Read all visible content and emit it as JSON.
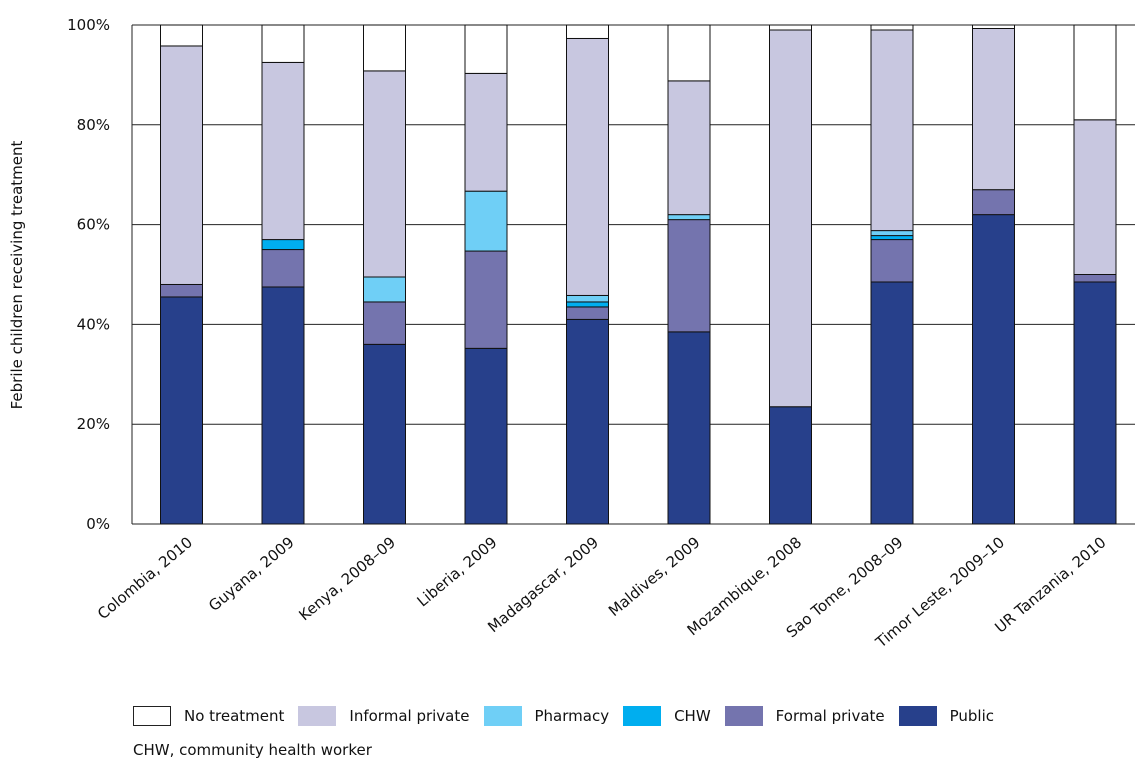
{
  "chart_data": {
    "type": "bar",
    "stacked": true,
    "title": "",
    "xlabel": "",
    "ylabel": "Febrile children receiving treatment",
    "ylim": [
      0,
      100
    ],
    "yticks": [
      "0%",
      "20%",
      "40%",
      "60%",
      "80%",
      "100%"
    ],
    "grid": true,
    "legend_position": "bottom",
    "categories": [
      "Colombia, 2010",
      "Guyana, 2009",
      "Kenya, 2008–09",
      "Liberia, 2009",
      "Madagascar, 2009",
      "Maldives, 2009",
      "Mozambique, 2008",
      "Sao Tome, 2008–09",
      "Timor Leste, 2009–10",
      "UR Tanzania, 2010"
    ],
    "series": [
      {
        "name": "Public",
        "color": "#27408b",
        "values": [
          45.5,
          47.5,
          36,
          35.2,
          41,
          38.5,
          23.5,
          48.5,
          62,
          48.5
        ]
      },
      {
        "name": "Formal private",
        "color": "#7474ae",
        "values": [
          2.5,
          7.5,
          8.5,
          19.5,
          2.5,
          22.5,
          0,
          8.5,
          5,
          1.5
        ]
      },
      {
        "name": "CHW",
        "color": "#00aeef",
        "values": [
          0,
          2,
          0,
          0,
          1,
          0,
          0,
          0.8,
          0,
          0
        ]
      },
      {
        "name": "Pharmacy",
        "color": "#6fcff6",
        "values": [
          0,
          0,
          5,
          12,
          1.3,
          1,
          0,
          1,
          0,
          0
        ]
      },
      {
        "name": "Informal private",
        "color": "#c8c7e0",
        "values": [
          47.8,
          35.5,
          41.3,
          23.6,
          51.5,
          26.8,
          75.5,
          40.2,
          32.3,
          31
        ]
      },
      {
        "name": "No treatment",
        "color": "#ffffff",
        "values": [
          4.2,
          7.5,
          9.2,
          9.7,
          2.7,
          11.2,
          1,
          1,
          0.7,
          19
        ]
      }
    ]
  },
  "legend": {
    "items": [
      {
        "label": "No treatment",
        "color": "#ffffff"
      },
      {
        "label": "Informal private",
        "color": "#c8c7e0"
      },
      {
        "label": "Pharmacy",
        "color": "#6fcff6"
      },
      {
        "label": "CHW",
        "color": "#00aeef"
      },
      {
        "label": "Formal private",
        "color": "#7474ae"
      },
      {
        "label": "Public",
        "color": "#27408b"
      }
    ]
  },
  "footnote": "CHW, community health worker"
}
